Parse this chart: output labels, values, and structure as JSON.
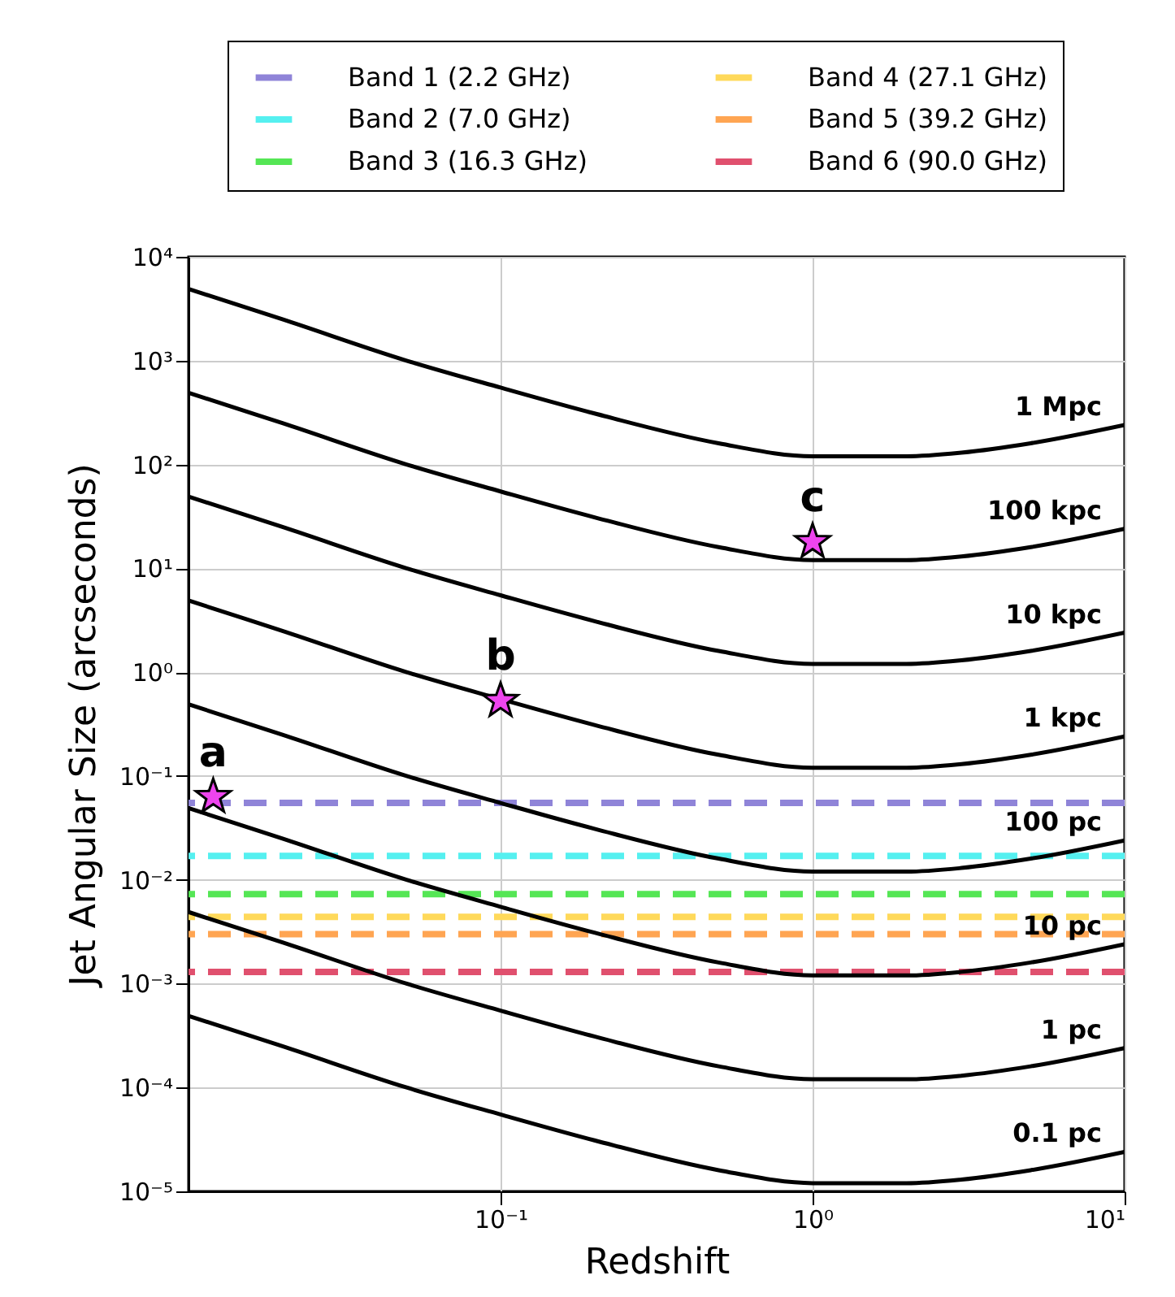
{
  "chart_data": {
    "type": "line",
    "xlabel": "Redshift",
    "ylabel": "Jet Angular Size (arcseconds)",
    "log": "xy",
    "grid": true,
    "legend": "top",
    "line_style": "solid",
    "xlim": [
      0.01,
      10
    ],
    "ylim": [
      1e-05,
      10000.0
    ],
    "xticks": [
      {
        "value": 0.1,
        "label": "10⁻¹"
      },
      {
        "value": 1,
        "label": "10⁰"
      },
      {
        "value": 10,
        "label": "10¹"
      }
    ],
    "yticks": [
      {
        "value": 1e-05,
        "label": "10⁻⁵"
      },
      {
        "value": 0.0001,
        "label": "10⁻⁴"
      },
      {
        "value": 0.001,
        "label": "10⁻³"
      },
      {
        "value": 0.01,
        "label": "10⁻²"
      },
      {
        "value": 0.1,
        "label": "10⁻¹"
      },
      {
        "value": 1,
        "label": "10⁰"
      },
      {
        "value": 10,
        "label": "10¹"
      },
      {
        "value": 100,
        "label": "10²"
      },
      {
        "value": 1000,
        "label": "10³"
      },
      {
        "value": 10000,
        "label": "10⁴"
      }
    ],
    "x": [
      0.01,
      0.02,
      0.05,
      0.1,
      0.2,
      0.5,
      1,
      1.6,
      2,
      3,
      5,
      10
    ],
    "series": [
      {
        "name": "1 Mpc",
        "color": "#000000",
        "values": [
          4900,
          2500,
          1000,
          550,
          310,
          160,
          120,
          120,
          120,
          130,
          160,
          240
        ]
      },
      {
        "name": "100 kpc",
        "color": "#000000",
        "values": [
          490,
          250,
          100,
          55,
          31,
          16,
          12,
          12,
          12,
          13,
          16,
          24
        ]
      },
      {
        "name": "10 kpc",
        "color": "#000000",
        "values": [
          49,
          25,
          10,
          5.5,
          3.1,
          1.6,
          1.2,
          1.2,
          1.2,
          1.3,
          1.6,
          2.4
        ]
      },
      {
        "name": "1 kpc",
        "color": "#000000",
        "values": [
          4.9,
          2.5,
          1.0,
          0.55,
          0.31,
          0.16,
          0.12,
          0.12,
          0.12,
          0.13,
          0.16,
          0.24
        ]
      },
      {
        "name": "100 pc",
        "color": "#000000",
        "values": [
          0.49,
          0.25,
          0.1,
          0.055,
          0.031,
          0.016,
          0.012,
          0.012,
          0.012,
          0.013,
          0.016,
          0.024
        ]
      },
      {
        "name": "10 pc",
        "color": "#000000",
        "values": [
          0.049,
          0.025,
          0.01,
          0.0055,
          0.0031,
          0.0016,
          0.0012,
          0.0012,
          0.0012,
          0.0013,
          0.0016,
          0.0024
        ]
      },
      {
        "name": "1 pc",
        "color": "#000000",
        "values": [
          0.0049,
          0.0025,
          0.001,
          0.00055,
          0.00031,
          0.00016,
          0.00012,
          0.00012,
          0.00012,
          0.00013,
          0.00016,
          0.00024
        ]
      },
      {
        "name": "0.1 pc",
        "color": "#000000",
        "values": [
          0.00049,
          0.00025,
          0.0001,
          5.5e-05,
          3.1e-05,
          1.6e-05,
          1.2e-05,
          1.2e-05,
          1.2e-05,
          1.3e-05,
          1.6e-05,
          2.4e-05
        ]
      },
      {
        "type": "scatter",
        "marker": "star",
        "color": "#ee44ee",
        "x": [
          0.012,
          0.1,
          1
        ],
        "values": [
          0.063,
          0.53,
          18
        ]
      }
    ],
    "ref_lines": [
      {
        "axis": "y",
        "value": 0.055,
        "label": "Band 1  (2.2 GHz)",
        "color": "#8f84d8",
        "line_style": "dashed"
      },
      {
        "axis": "y",
        "value": 0.017,
        "label": "Band 2  (7.0 GHz)",
        "color": "#55f0f0",
        "line_style": "dashed"
      },
      {
        "axis": "y",
        "value": 0.0073,
        "label": "Band 3 (16.3 GHz)",
        "color": "#55e655",
        "line_style": "dashed"
      },
      {
        "axis": "y",
        "value": 0.0044,
        "label": "Band 4 (27.1 GHz)",
        "color": "#ffd95a",
        "line_style": "dashed"
      },
      {
        "axis": "y",
        "value": 0.003,
        "label": "Band 5 (39.2 GHz)",
        "color": "#ffa552",
        "line_style": "dashed"
      },
      {
        "axis": "y",
        "value": 0.0013,
        "label": "Band 6 (90.0 GHz)",
        "color": "#e0506e",
        "line_style": "dashed"
      }
    ],
    "annotations": [
      {
        "text": "a",
        "x": 0.012,
        "y": 0.063
      },
      {
        "text": "b",
        "x": 0.1,
        "y": 0.53
      },
      {
        "text": "c",
        "x": 1,
        "y": 18
      }
    ]
  }
}
